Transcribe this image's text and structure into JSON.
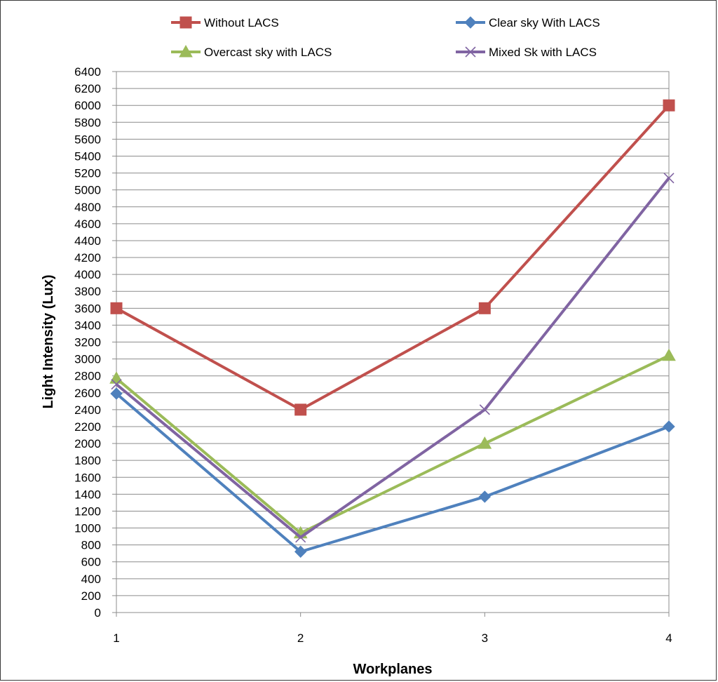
{
  "chart_data": {
    "type": "line",
    "title": "",
    "xlabel": "Workplanes",
    "ylabel": "Light Intensity (Lux)",
    "categories": [
      "1",
      "2",
      "3",
      "4"
    ],
    "ylim": [
      0,
      6400
    ],
    "ystep": 200,
    "grid": "horizontal",
    "legend_position": "top",
    "series": [
      {
        "name": "Without LACS",
        "values": [
          3600,
          2400,
          3600,
          6000
        ],
        "color": "#c0504d",
        "marker": "square"
      },
      {
        "name": "Clear sky With LACS",
        "values": [
          2590,
          720,
          1370,
          2200
        ],
        "color": "#4f81bd",
        "marker": "diamond"
      },
      {
        "name": "Overcast sky with LACS",
        "values": [
          2770,
          940,
          2000,
          3040
        ],
        "color": "#9bbb59",
        "marker": "triangle"
      },
      {
        "name": "Mixed Sk with LACS",
        "values": [
          2700,
          890,
          2400,
          5140
        ],
        "color": "#8064a2",
        "marker": "cross"
      }
    ]
  }
}
